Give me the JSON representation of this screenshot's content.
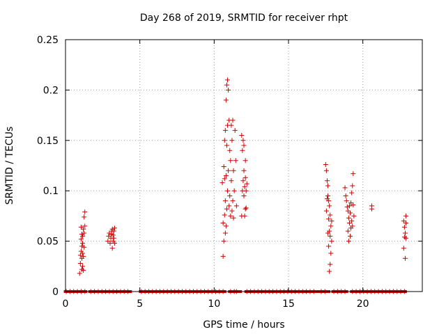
{
  "chart_data": {
    "type": "scatter",
    "title": "Day 268 of 2019, SRMTID for receiver rhpt",
    "xlabel": "GPS time / hours",
    "ylabel": "SRMTID / TECUs",
    "xlim": [
      0,
      24
    ],
    "ylim": [
      0,
      0.25
    ],
    "xticks": [
      0,
      5,
      10,
      15,
      20
    ],
    "xtick_labels": [
      "0",
      "5",
      "10",
      "15",
      "20"
    ],
    "yticks": [
      0,
      0.05,
      0.1,
      0.15,
      0.2,
      0.25
    ],
    "ytick_labels": [
      "0",
      "0.05",
      "0.1",
      "0.15",
      "0.2",
      "0.25"
    ],
    "grid": true,
    "legend": "none",
    "marker": "plus",
    "color": "#cc0000",
    "series": [
      {
        "x": [
          0.95,
          1.0,
          1.0,
          1.05,
          1.05,
          1.05,
          1.1,
          1.1,
          1.1,
          1.1,
          1.15,
          1.15,
          1.15,
          1.15,
          1.2,
          1.2,
          1.2,
          1.25,
          1.25,
          1.25,
          1.3,
          1.3,
          2.85,
          2.9,
          2.95,
          3.0,
          3.05,
          3.1,
          3.1,
          3.15,
          3.15,
          3.2,
          3.2,
          3.25,
          3.25,
          3.3,
          3.3,
          10.55,
          10.6,
          10.6,
          10.65,
          10.65,
          10.7,
          10.7,
          10.7,
          10.75,
          10.75,
          10.75,
          10.8,
          10.8,
          10.8,
          10.85,
          10.85,
          10.85,
          10.9,
          10.9,
          10.9,
          10.95,
          10.95,
          11.0,
          11.0,
          11.05,
          11.05,
          11.1,
          11.1,
          11.15,
          11.15,
          11.2,
          11.2,
          11.25,
          11.25,
          11.3,
          11.3,
          11.35,
          11.4,
          11.45,
          11.5,
          11.85,
          11.85,
          11.9,
          11.9,
          11.95,
          11.95,
          12.0,
          12.0,
          12.0,
          12.05,
          12.05,
          12.1,
          12.1,
          12.1,
          12.15,
          12.15,
          12.2,
          17.5,
          17.55,
          17.55,
          17.6,
          17.6,
          17.65,
          17.65,
          17.65,
          17.7,
          17.7,
          17.7,
          17.75,
          17.75,
          17.75,
          17.8,
          17.8,
          17.8,
          17.85,
          17.85,
          17.9,
          17.9,
          18.8,
          18.85,
          18.9,
          18.95,
          19.0,
          19.0,
          19.05,
          19.05,
          19.1,
          19.1,
          19.15,
          19.15,
          19.2,
          19.2,
          19.25,
          19.25,
          19.3,
          19.3,
          19.35,
          19.35,
          19.4,
          20.6,
          20.6,
          22.75,
          22.75,
          22.8,
          22.8,
          22.85,
          22.85,
          22.9,
          22.9,
          22.9
        ],
        "y": [
          0.018,
          0.028,
          0.036,
          0.04,
          0.052,
          0.064,
          0.022,
          0.033,
          0.045,
          0.057,
          0.025,
          0.038,
          0.048,
          0.055,
          0.021,
          0.035,
          0.062,
          0.044,
          0.058,
          0.074,
          0.065,
          0.079,
          0.05,
          0.055,
          0.058,
          0.048,
          0.053,
          0.057,
          0.06,
          0.043,
          0.062,
          0.05,
          0.056,
          0.053,
          0.06,
          0.048,
          0.063,
          0.108,
          0.035,
          0.068,
          0.05,
          0.124,
          0.076,
          0.112,
          0.15,
          0.058,
          0.09,
          0.16,
          0.065,
          0.115,
          0.19,
          0.082,
          0.145,
          0.205,
          0.1,
          0.165,
          0.21,
          0.12,
          0.2,
          0.085,
          0.17,
          0.095,
          0.14,
          0.075,
          0.13,
          0.11,
          0.165,
          0.08,
          0.15,
          0.09,
          0.17,
          0.073,
          0.12,
          0.1,
          0.16,
          0.13,
          0.085,
          0.075,
          0.155,
          0.1,
          0.14,
          0.11,
          0.15,
          0.095,
          0.12,
          0.145,
          0.075,
          0.104,
          0.082,
          0.113,
          0.13,
          0.1,
          0.083,
          0.107,
          0.126,
          0.08,
          0.12,
          0.092,
          0.11,
          0.058,
          0.095,
          0.105,
          0.045,
          0.072,
          0.09,
          0.02,
          0.06,
          0.085,
          0.027,
          0.055,
          0.076,
          0.038,
          0.065,
          0.05,
          0.07,
          0.103,
          0.095,
          0.09,
          0.084,
          0.06,
          0.08,
          0.05,
          0.073,
          0.068,
          0.085,
          0.055,
          0.078,
          0.063,
          0.088,
          0.07,
          0.098,
          0.065,
          0.105,
          0.086,
          0.117,
          0.075,
          0.082,
          0.085,
          0.07,
          0.043,
          0.064,
          0.054,
          0.058,
          0.033,
          0.068,
          0.075,
          0.053
        ]
      }
    ],
    "baseline": {
      "y": 0,
      "segments": [
        [
          0.05,
          1.3
        ],
        [
          1.7,
          3.0
        ],
        [
          3.2,
          4.3
        ],
        [
          5.1,
          10.65
        ],
        [
          11.1,
          11.35
        ],
        [
          11.5,
          11.7
        ],
        [
          12.2,
          16.9
        ],
        [
          17.2,
          17.65
        ],
        [
          18.05,
          18.85
        ],
        [
          19.3,
          22.8
        ]
      ]
    }
  }
}
